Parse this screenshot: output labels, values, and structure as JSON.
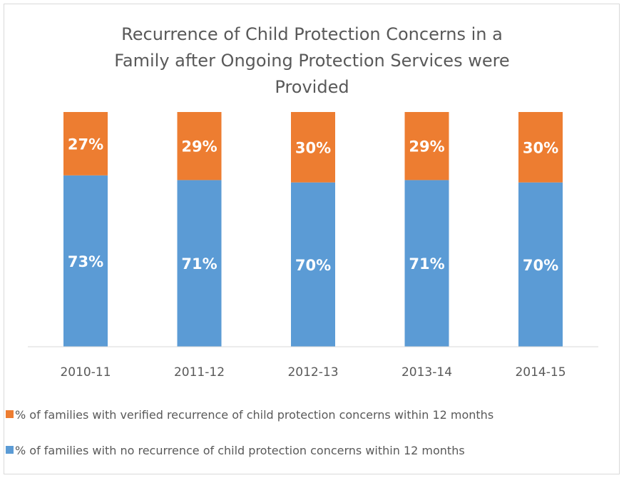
{
  "chart_data": {
    "type": "bar",
    "stacked": true,
    "title_lines": [
      "Recurrence of Child Protection Concerns in a",
      "Family after Ongoing Protection Services were",
      "Provided"
    ],
    "categories": [
      "2010-11",
      "2011-12",
      "2012-13",
      "2013-14",
      "2014-15"
    ],
    "series": [
      {
        "name": "% of families with no recurrence of child protection concerns within 12 months",
        "color": "#5b9bd5",
        "values": [
          73,
          71,
          70,
          71,
          70
        ],
        "labels": [
          "73%",
          "71%",
          "70%",
          "71%",
          "70%"
        ]
      },
      {
        "name": "% of families with verified recurrence of child protection concerns within 12 months",
        "color": "#ed7d31",
        "values": [
          27,
          29,
          30,
          29,
          30
        ],
        "labels": [
          "27%",
          "29%",
          "30%",
          "29%",
          "30%"
        ]
      }
    ],
    "ylim": [
      0,
      100
    ],
    "grid": false,
    "legend_position": "bottom"
  }
}
